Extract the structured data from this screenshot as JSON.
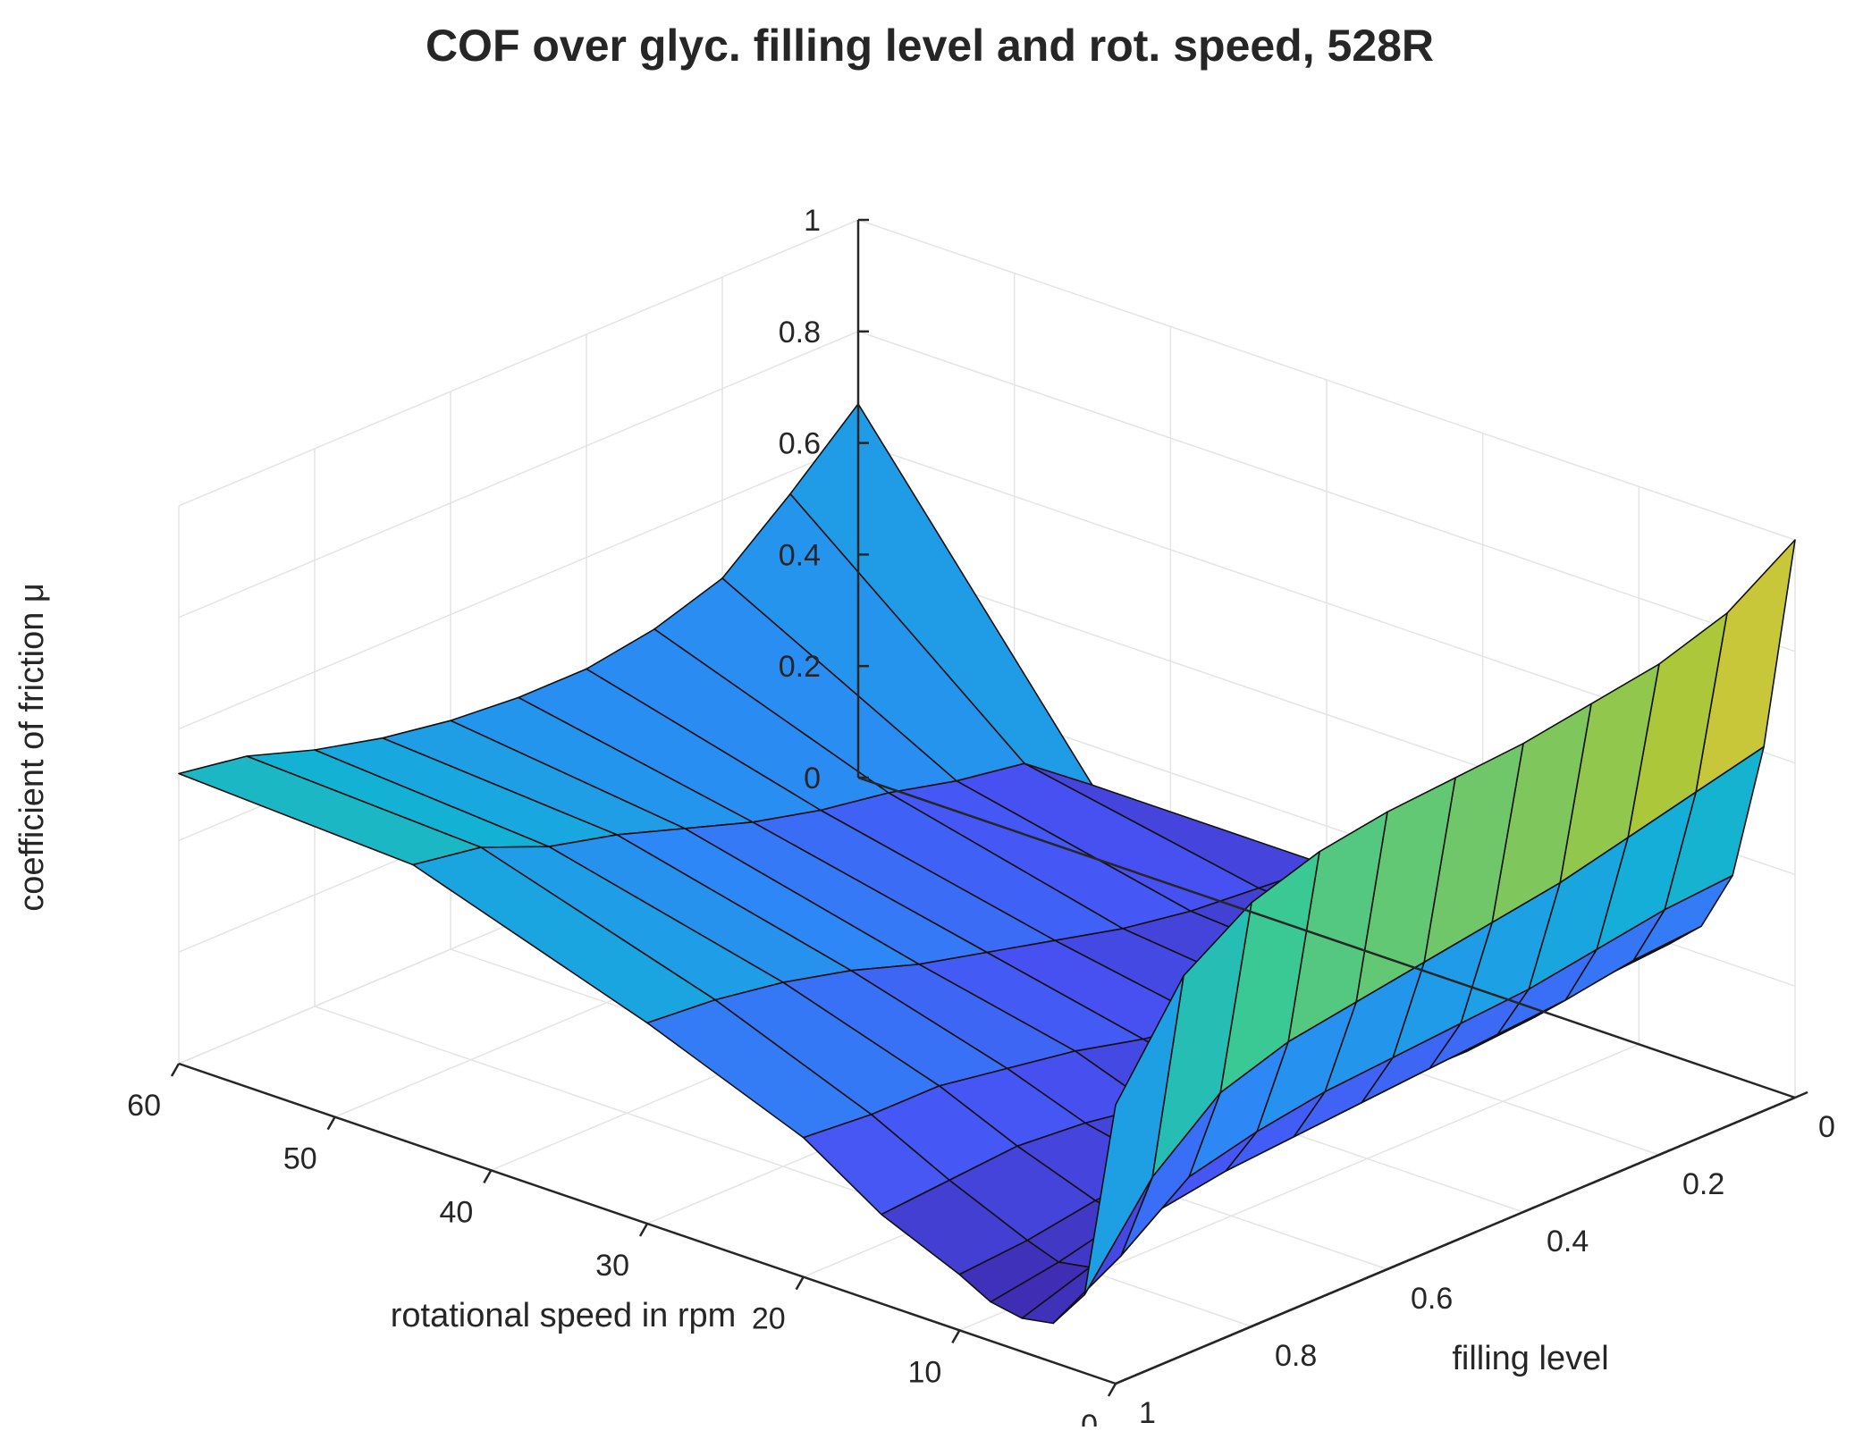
{
  "chart_data": {
    "type": "surface",
    "title": "COF over glyc. filling level and rot. speed, 528R",
    "xlabel": "filling level",
    "ylabel": "rotational speed in rpm",
    "zlabel": "coefficient of friction μ",
    "xlim": [
      0,
      1
    ],
    "ylim": [
      0,
      60
    ],
    "zlim": [
      0,
      1
    ],
    "x_ticks": [
      "0",
      "0.2",
      "0.4",
      "0.6",
      "0.8",
      "1"
    ],
    "y_ticks": [
      "0",
      "10",
      "20",
      "30",
      "40",
      "50",
      "60"
    ],
    "z_ticks": [
      "0",
      "0.2",
      "0.4",
      "0.6",
      "0.8",
      "1"
    ],
    "grid": true,
    "colormap": "parula",
    "filling_levels": [
      0.0,
      0.1,
      0.2,
      0.3,
      0.4,
      0.5,
      0.6,
      0.7,
      0.8,
      0.9,
      1.0
    ],
    "rotational_speeds": [
      0,
      2,
      4,
      6,
      8,
      10,
      15,
      20,
      30,
      45,
      60
    ],
    "cof": [
      [
        1.0,
        0.61,
        0.36,
        0.25,
        0.2,
        0.17,
        0.15,
        0.14,
        0.13,
        0.13,
        0.67
      ],
      [
        0.92,
        0.58,
        0.35,
        0.24,
        0.19,
        0.16,
        0.14,
        0.13,
        0.14,
        0.22,
        0.56
      ],
      [
        0.88,
        0.55,
        0.33,
        0.22,
        0.17,
        0.15,
        0.13,
        0.13,
        0.15,
        0.24,
        0.46
      ],
      [
        0.86,
        0.52,
        0.31,
        0.21,
        0.16,
        0.14,
        0.13,
        0.14,
        0.17,
        0.27,
        0.42
      ],
      [
        0.84,
        0.5,
        0.3,
        0.2,
        0.16,
        0.14,
        0.13,
        0.15,
        0.2,
        0.29,
        0.4
      ],
      [
        0.83,
        0.48,
        0.29,
        0.19,
        0.15,
        0.14,
        0.14,
        0.17,
        0.23,
        0.32,
        0.4
      ],
      [
        0.82,
        0.46,
        0.28,
        0.18,
        0.15,
        0.14,
        0.15,
        0.2,
        0.26,
        0.36,
        0.41
      ],
      [
        0.8,
        0.44,
        0.26,
        0.17,
        0.14,
        0.14,
        0.17,
        0.22,
        0.3,
        0.4,
        0.43
      ],
      [
        0.76,
        0.4,
        0.23,
        0.15,
        0.12,
        0.13,
        0.18,
        0.24,
        0.33,
        0.43,
        0.46
      ],
      [
        0.68,
        0.3,
        0.14,
        0.1,
        0.09,
        0.11,
        0.17,
        0.24,
        0.35,
        0.48,
        0.5
      ],
      [
        0.5,
        0.14,
        0.07,
        0.06,
        0.07,
        0.1,
        0.16,
        0.25,
        0.36,
        0.5,
        0.52
      ]
    ]
  }
}
